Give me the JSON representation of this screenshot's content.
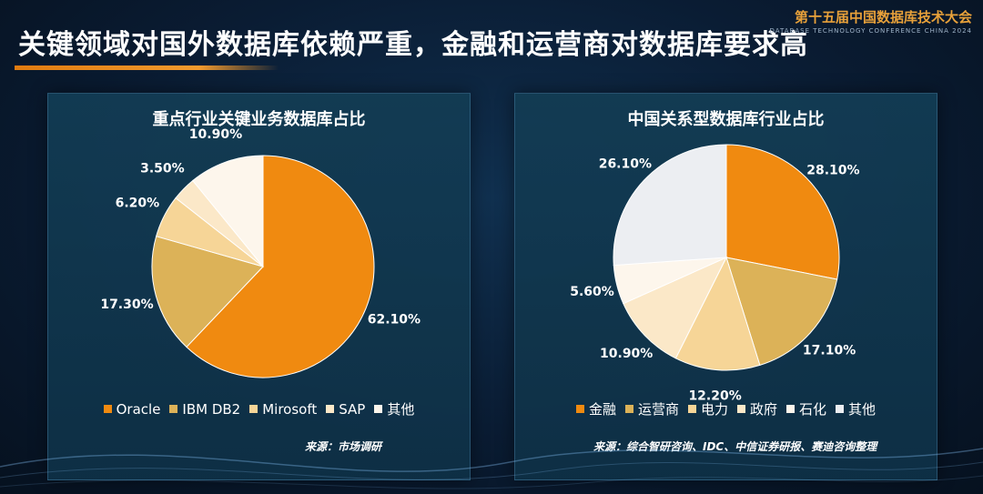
{
  "header": {
    "title": "关键领域对国外数据库依赖严重，金融和运营商对数据库要求高",
    "conference_name": "第十五届中国数据库技术大会",
    "conference_sub": "DATABASE TECHNOLOGY CONFERENCE CHINA 2024",
    "accent_color": "#f08a10"
  },
  "left_panel": {
    "source": "来源：市场调研"
  },
  "right_panel": {
    "source": "来源：综合智研咨询、IDC、中信证券研报、赛迪咨询整理"
  },
  "chart_data": [
    {
      "type": "pie",
      "title": "重点行业关键业务数据库占比",
      "legend_position": "bottom",
      "categories": [
        "Oracle",
        "IBM DB2",
        "Mirosoft",
        "SAP",
        "其他"
      ],
      "values": [
        62.1,
        17.3,
        6.2,
        3.5,
        10.9
      ],
      "labels": [
        "62.10%",
        "17.30%",
        "6.20%",
        "3.50%",
        "10.90%"
      ],
      "colors": [
        "#f08a10",
        "#dcb258",
        "#f6d597",
        "#fbe8c8",
        "#fdf6ec"
      ]
    },
    {
      "type": "pie",
      "title": "中国关系型数据库行业占比",
      "legend_position": "bottom",
      "categories": [
        "金融",
        "运营商",
        "电力",
        "政府",
        "石化",
        "其他"
      ],
      "values": [
        28.1,
        17.1,
        12.2,
        10.9,
        5.6,
        26.1
      ],
      "labels": [
        "28.10%",
        "17.10%",
        "12.20%",
        "10.90%",
        "5.60%",
        "26.10%"
      ],
      "colors": [
        "#f08a10",
        "#dcb258",
        "#f6d597",
        "#fbe8c8",
        "#fdf6ec",
        "#eceef2"
      ]
    }
  ]
}
